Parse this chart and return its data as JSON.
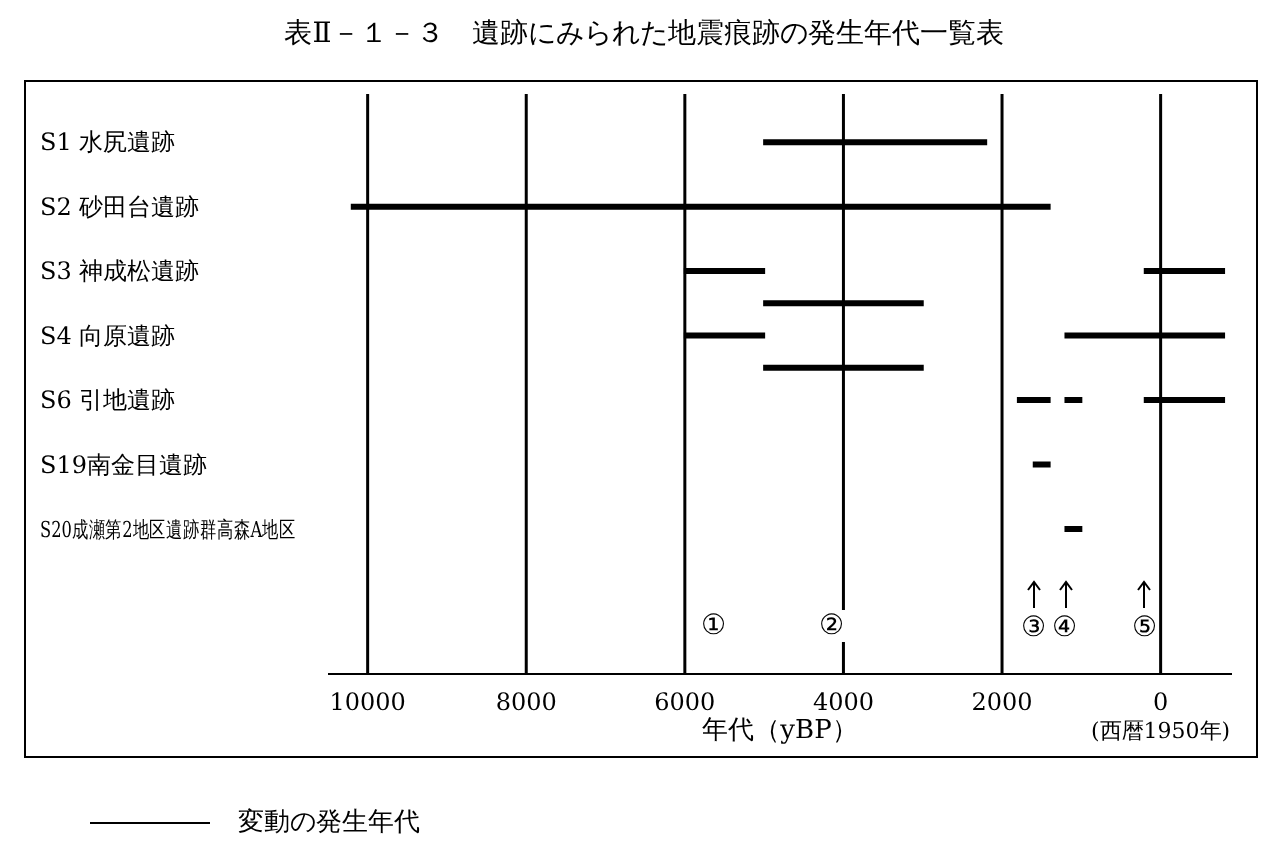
{
  "chart_data": {
    "type": "bar",
    "orientation": "horizontal",
    "title": "表Ⅱ－１－３　遺跡にみられた地震痕跡の発生年代一覧表",
    "xlabel": "年代（yBP）",
    "categories": [
      null,
      "S1 水尻遺跡",
      null,
      "S2 砂田台遺跡",
      null,
      "S3 神成松遺跡",
      null,
      "S4 向原遺跡",
      null,
      "S6 引地遺跡",
      null,
      "S19南金目遺跡",
      null,
      "S20成瀬第2地区遺跡群高森A地区",
      null,
      null,
      null,
      null
    ],
    "series": [
      {
        "name": "変動の発生年代",
        "color": "#000000",
        "values": [
          null,
          2800,
          null,
          8800,
          null,
          1000,
          2000,
          1000,
          2000,
          400,
          null,
          200,
          null,
          200,
          null,
          null,
          null,
          null
        ],
        "base": [
          null,
          2200,
          null,
          1400,
          null,
          5000,
          3000,
          5000,
          3000,
          1400,
          null,
          1400,
          null,
          1000,
          null,
          null,
          null,
          null
        ]
      },
      {
        "color": "#000000",
        "values": [
          null,
          null,
          null,
          null,
          null,
          1000,
          null,
          2000,
          null,
          200,
          null,
          null,
          null,
          null,
          null,
          null,
          null,
          null
        ],
        "base": [
          null,
          null,
          null,
          null,
          null,
          -800,
          null,
          -800,
          null,
          1000,
          null,
          null,
          null,
          null,
          null,
          null,
          null,
          null
        ]
      },
      {
        "color": "#000000",
        "values": [
          null,
          null,
          null,
          null,
          null,
          null,
          null,
          null,
          null,
          1000,
          null,
          null,
          null,
          null,
          null,
          null,
          null,
          null
        ],
        "base": [
          null,
          null,
          null,
          null,
          null,
          null,
          null,
          null,
          null,
          -800,
          null,
          null,
          null,
          null,
          null,
          null,
          null,
          null
        ]
      }
    ],
    "xlim": [
      10500,
      -900
    ],
    "xticks": [
      10000,
      8000,
      6000,
      4000,
      2000,
      {
        "value": 0,
        "label": "0\n(西暦1950年)"
      }
    ],
    "grid": "x",
    "legend": "bottom left",
    "annotations": [
      "①",
      "②",
      {
        "text": "③",
        "x": 1600
      },
      {
        "text": "④",
        "x": 1200
      },
      {
        "text": "⑤",
        "x": 200
      }
    ]
  }
}
